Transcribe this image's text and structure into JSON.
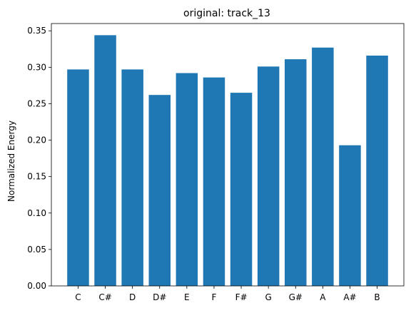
{
  "chart_data": {
    "type": "bar",
    "title": "original: track_13",
    "xlabel": "",
    "ylabel": "Normalized Energy",
    "categories": [
      "C",
      "C#",
      "D",
      "D#",
      "E",
      "F",
      "F#",
      "G",
      "G#",
      "A",
      "A#",
      "B"
    ],
    "values": [
      0.297,
      0.344,
      0.297,
      0.262,
      0.292,
      0.286,
      0.265,
      0.301,
      0.311,
      0.327,
      0.193,
      0.316
    ],
    "ylim": [
      0,
      0.36
    ],
    "yticks": [
      "0.00",
      "0.05",
      "0.10",
      "0.15",
      "0.20",
      "0.25",
      "0.30",
      "0.35"
    ],
    "bar_color": "#1f77b4",
    "grid": false,
    "legend": false
  }
}
